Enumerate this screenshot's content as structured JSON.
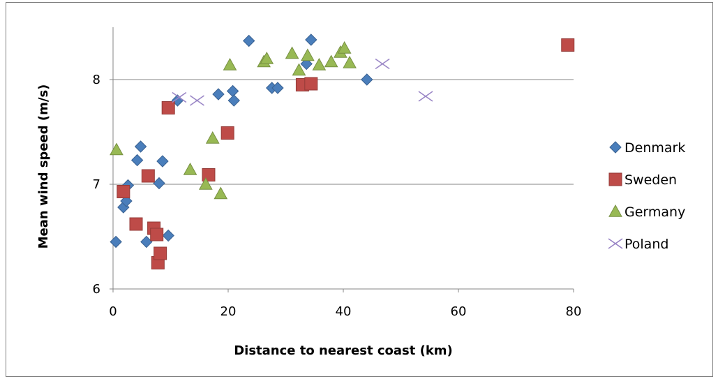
{
  "chart_data": {
    "type": "scatter",
    "title": "",
    "xlabel": "Distance to nearest coast (km)",
    "ylabel": "Mean wind speed (m/s)",
    "xlim": [
      0,
      80
    ],
    "ylim": [
      6,
      8.5
    ],
    "x_ticks": [
      0,
      20,
      40,
      60,
      80
    ],
    "y_ticks": [
      6,
      7,
      8
    ],
    "grid": "horizontal major gridlines",
    "legend_position": "right",
    "series": [
      {
        "name": "Denmark",
        "marker": "diamond",
        "color": "#4a7ebb",
        "points": [
          [
            0.5,
            6.45
          ],
          [
            1.8,
            6.78
          ],
          [
            2.3,
            6.84
          ],
          [
            2.6,
            6.99
          ],
          [
            4.2,
            7.23
          ],
          [
            4.8,
            7.36
          ],
          [
            5.8,
            6.45
          ],
          [
            8.0,
            7.01
          ],
          [
            8.6,
            7.22
          ],
          [
            9.6,
            6.51
          ],
          [
            11.2,
            7.8
          ],
          [
            18.3,
            7.86
          ],
          [
            20.8,
            7.89
          ],
          [
            21.0,
            7.8
          ],
          [
            23.6,
            8.37
          ],
          [
            27.6,
            7.92
          ],
          [
            28.6,
            7.92
          ],
          [
            33.6,
            8.15
          ],
          [
            34.4,
            8.38
          ],
          [
            44.1,
            8.0
          ]
        ]
      },
      {
        "name": "Sweden",
        "marker": "square",
        "color": "#be4b48",
        "points": [
          [
            1.8,
            6.93
          ],
          [
            4.0,
            6.62
          ],
          [
            6.1,
            7.08
          ],
          [
            7.1,
            6.58
          ],
          [
            7.6,
            6.52
          ],
          [
            7.8,
            6.25
          ],
          [
            8.2,
            6.34
          ],
          [
            9.6,
            7.73
          ],
          [
            16.6,
            7.09
          ],
          [
            19.9,
            7.49
          ],
          [
            32.9,
            7.95
          ],
          [
            34.4,
            7.96
          ],
          [
            79.0,
            8.33
          ]
        ]
      },
      {
        "name": "Germany",
        "marker": "triangle",
        "color": "#98b954",
        "points": [
          [
            0.6,
            7.33
          ],
          [
            13.4,
            7.14
          ],
          [
            16.1,
            7.0
          ],
          [
            17.3,
            7.44
          ],
          [
            18.7,
            6.91
          ],
          [
            20.3,
            8.14
          ],
          [
            26.2,
            8.17
          ],
          [
            26.7,
            8.2
          ],
          [
            31.1,
            8.25
          ],
          [
            32.3,
            8.09
          ],
          [
            33.8,
            8.23
          ],
          [
            35.8,
            8.14
          ],
          [
            37.9,
            8.17
          ],
          [
            39.5,
            8.26
          ],
          [
            40.2,
            8.3
          ],
          [
            41.1,
            8.16
          ]
        ]
      },
      {
        "name": "Poland",
        "marker": "x",
        "color": "#9a86c6",
        "points": [
          [
            11.5,
            7.83
          ],
          [
            14.6,
            7.8
          ],
          [
            46.8,
            8.15
          ],
          [
            54.3,
            7.84
          ]
        ]
      }
    ]
  }
}
